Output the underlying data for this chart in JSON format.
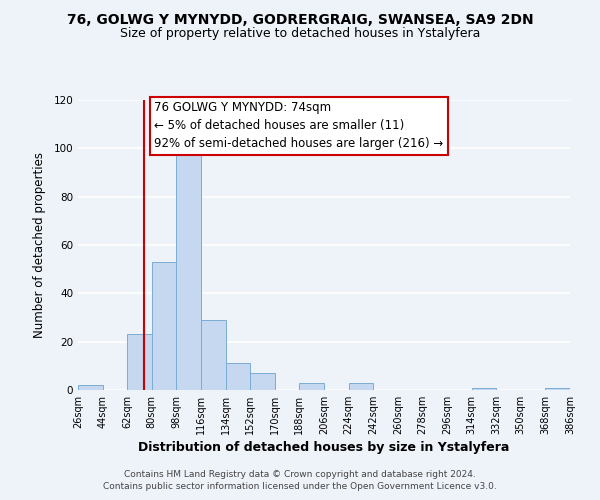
{
  "title": "76, GOLWG Y MYNYDD, GODRERGRAIG, SWANSEA, SA9 2DN",
  "subtitle": "Size of property relative to detached houses in Ystalyfera",
  "xlabel": "Distribution of detached houses by size in Ystalyfera",
  "ylabel": "Number of detached properties",
  "bin_edges": [
    26,
    44,
    62,
    80,
    98,
    116,
    134,
    152,
    170,
    188,
    206,
    224,
    242,
    260,
    278,
    296,
    314,
    332,
    350,
    368,
    386
  ],
  "bar_heights": [
    2,
    0,
    23,
    53,
    98,
    29,
    11,
    7,
    0,
    3,
    0,
    3,
    0,
    0,
    0,
    0,
    1,
    0,
    0,
    1
  ],
  "bar_color": "#c5d8f0",
  "bar_edge_color": "#7aadd4",
  "vline_x": 74,
  "vline_color": "#cc0000",
  "annotation_line1": "76 GOLWG Y MYNYDD: 74sqm",
  "annotation_line2": "← 5% of detached houses are smaller (11)",
  "annotation_line3": "92% of semi-detached houses are larger (216) →",
  "annotation_box_edge_color": "#cc0000",
  "annotation_box_face_color": "#ffffff",
  "ylim": [
    0,
    120
  ],
  "yticks": [
    0,
    20,
    40,
    60,
    80,
    100,
    120
  ],
  "tick_labels": [
    "26sqm",
    "44sqm",
    "62sqm",
    "80sqm",
    "98sqm",
    "116sqm",
    "134sqm",
    "152sqm",
    "170sqm",
    "188sqm",
    "206sqm",
    "224sqm",
    "242sqm",
    "260sqm",
    "278sqm",
    "296sqm",
    "314sqm",
    "332sqm",
    "350sqm",
    "368sqm",
    "386sqm"
  ],
  "footer_line1": "Contains HM Land Registry data © Crown copyright and database right 2024.",
  "footer_line2": "Contains public sector information licensed under the Open Government Licence v3.0.",
  "background_color": "#eef2f9",
  "grid_color": "#ffffff",
  "title_fontsize": 10,
  "subtitle_fontsize": 9,
  "xlabel_fontsize": 9,
  "ylabel_fontsize": 8.5,
  "tick_fontsize": 7,
  "annotation_fontsize": 8.5,
  "footer_fontsize": 6.5
}
